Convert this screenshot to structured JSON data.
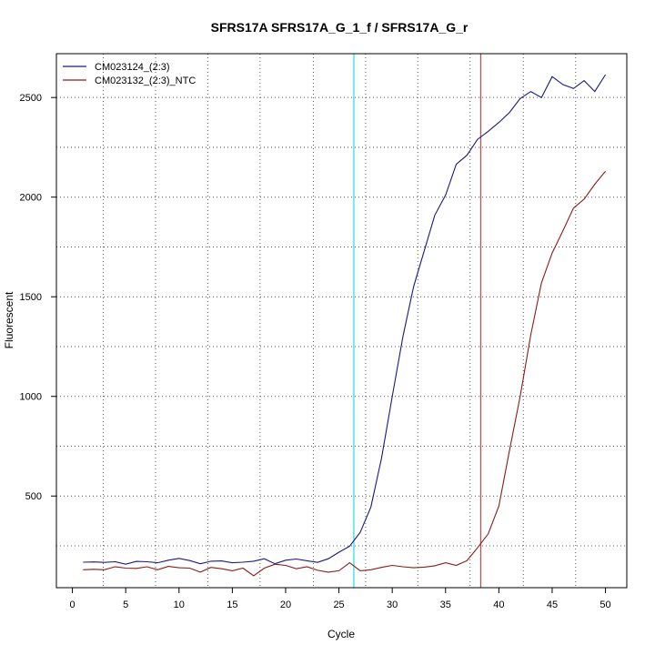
{
  "chart_data": {
    "type": "line",
    "title": "SFRS17A  SFRS17A_G_1_f / SFRS17A_G_r",
    "xlabel": "Cycle",
    "ylabel": "Fluorescent",
    "xlim": [
      -1.5,
      52
    ],
    "ylim": [
      40,
      2720
    ],
    "x_ticks": [
      0,
      5,
      10,
      15,
      20,
      25,
      30,
      35,
      40,
      45,
      50
    ],
    "y_ticks": [
      500,
      1000,
      1500,
      2000,
      2500
    ],
    "grid": "dotted",
    "grid_x": [
      2.9,
      7.8,
      12.7,
      17.6,
      22.6,
      27.5,
      32.4,
      37.3,
      42.3,
      47.2
    ],
    "grid_y": [
      250,
      500,
      750,
      1000,
      1250,
      1500,
      1750,
      2000,
      2250,
      2500
    ],
    "legend_position": "top-left",
    "x": [
      1,
      2,
      3,
      4,
      5,
      6,
      7,
      8,
      9,
      10,
      11,
      12,
      13,
      14,
      15,
      16,
      17,
      18,
      19,
      20,
      21,
      22,
      23,
      24,
      25,
      26,
      27,
      28,
      29,
      30,
      31,
      32,
      33,
      34,
      35,
      36,
      37,
      38,
      39,
      40,
      41,
      42,
      43,
      44,
      45,
      46,
      47,
      48,
      49,
      50
    ],
    "series": [
      {
        "name": "CM023124_(2:3)",
        "color": "#1a1a80",
        "values": [
          168,
          169,
          167,
          170,
          158,
          172,
          170,
          165,
          178,
          187,
          176,
          160,
          173,
          174,
          165,
          168,
          173,
          185,
          160,
          178,
          184,
          175,
          167,
          185,
          218,
          248,
          318,
          445,
          690,
          1000,
          1300,
          1550,
          1730,
          1910,
          2010,
          2165,
          2210,
          2290,
          2330,
          2375,
          2425,
          2495,
          2530,
          2500,
          2605,
          2565,
          2545,
          2585,
          2530,
          2615
        ]
      },
      {
        "name": "CM023132_(2:3)_NTC",
        "color": "#8b1a1a",
        "values": [
          130,
          132,
          130,
          145,
          138,
          137,
          145,
          130,
          147,
          140,
          138,
          118,
          142,
          135,
          125,
          138,
          100,
          138,
          158,
          152,
          135,
          145,
          127,
          118,
          125,
          165,
          125,
          130,
          142,
          152,
          145,
          140,
          143,
          150,
          165,
          152,
          175,
          240,
          310,
          450,
          730,
          1000,
          1310,
          1570,
          1720,
          1830,
          1945,
          1990,
          2065,
          2130
        ]
      }
    ],
    "vlines": [
      {
        "x": 26.4,
        "color": "#33e0e0"
      },
      {
        "x": 38.3,
        "color": "#c05050"
      }
    ]
  }
}
